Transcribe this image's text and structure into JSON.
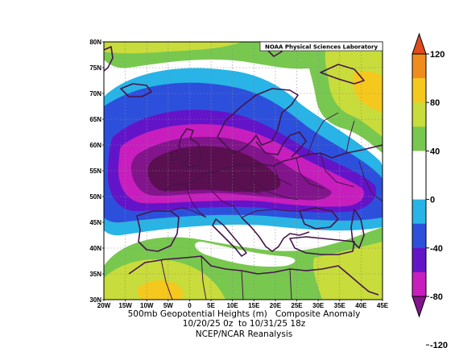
{
  "credit": "NOAA Physical Sciences Laboratory",
  "title_lines": [
    "500mb Geopotential Heights (m)   Composite Anomaly",
    "10/20/25 0z  to 10/31/25 18z"
  ],
  "source": "NCEP/NCAR Reanalysis",
  "lat_labels": [
    "80N",
    "75N",
    "70N",
    "65N",
    "60N",
    "55N",
    "50N",
    "45N",
    "40N",
    "35N",
    "30N"
  ],
  "lon_labels": [
    "20W",
    "15W",
    "10W",
    "5W",
    "0",
    "5E",
    "10E",
    "15E",
    "20E",
    "25E",
    "30E",
    "35E",
    "40E",
    "45E"
  ],
  "colorbar": {
    "labels": [
      "120",
      "80",
      "40",
      "0",
      "-40",
      "-80",
      "-120"
    ],
    "colors": [
      "#e14b1e",
      "#f08c1e",
      "#f5c81e",
      "#c8dc3c",
      "#78c850",
      "#ffffff",
      "#ffffff",
      "#28b4e6",
      "#2d50dc",
      "#6414c8",
      "#c81ebe",
      "#82148c"
    ]
  },
  "colors": {
    "ocean_white": "#ffffff",
    "cyan": "#28b4e6",
    "blue": "#2d50dc",
    "indigo": "#6414c8",
    "magenta": "#c81ebe",
    "purple": "#82148c",
    "darkpurple": "#5a0f50",
    "green": "#78c850",
    "lightgreen": "#c8dc3c",
    "yellow": "#f5c81e",
    "coast": "#46144b"
  }
}
